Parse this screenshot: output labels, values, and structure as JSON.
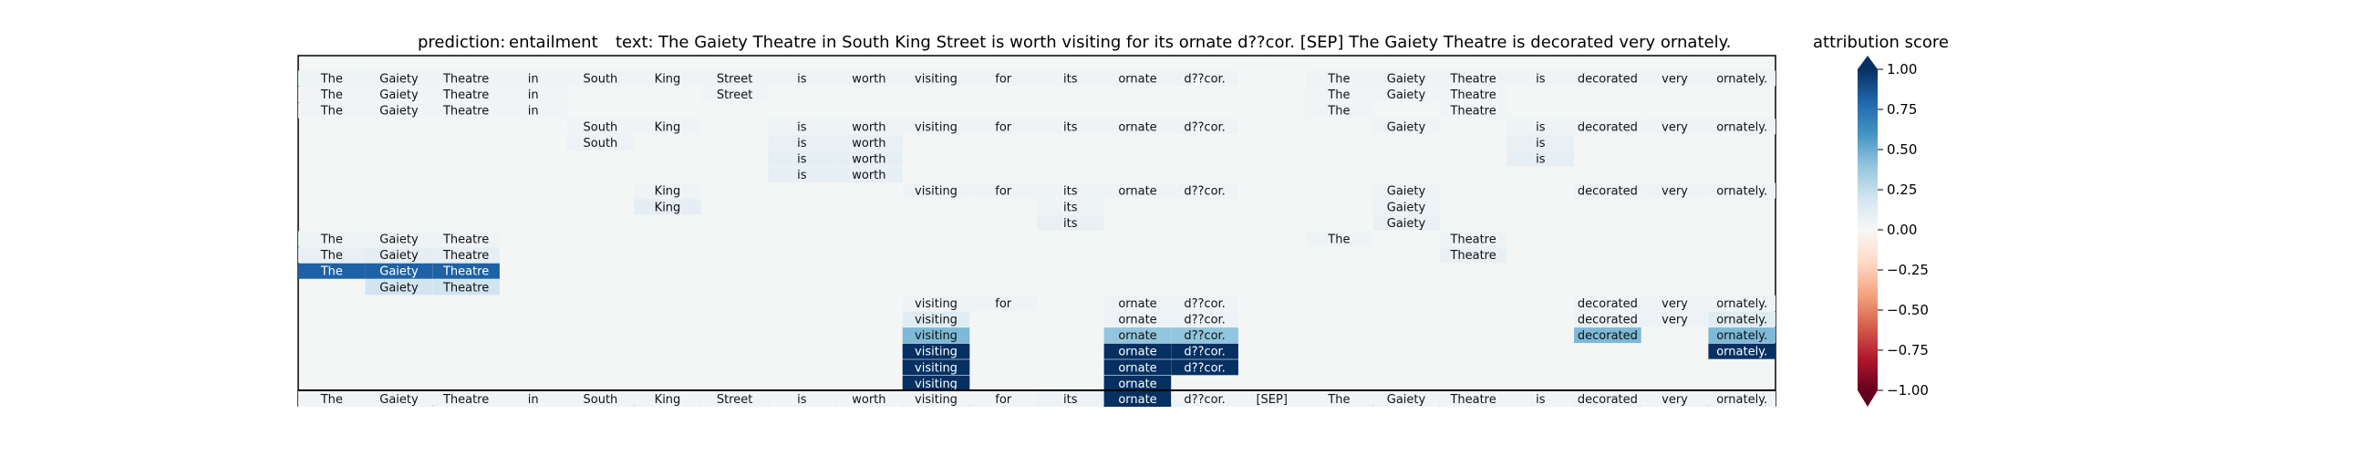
{
  "chart_data": {
    "type": "heatmap",
    "title_prediction_label": "prediction:",
    "title_prediction_value": "entailment",
    "title_text_label": "text:",
    "title_text_value": "The Gaiety Theatre in South King Street is worth visiting for its ornate d??cor. [SEP] The Gaiety Theatre is decorated very ornately.",
    "colorbar_label": "attribution score",
    "colorbar_ticks": [
      "1.00",
      "0.75",
      "0.50",
      "0.25",
      "0.00",
      "−0.25",
      "−0.50",
      "−0.75",
      "−1.00"
    ],
    "colorbar_range": [
      -1,
      1
    ],
    "tokens": [
      "The",
      "Gaiety",
      "Theatre",
      "in",
      "South",
      "King",
      "Street",
      "is",
      "worth",
      "visiting",
      "for",
      "its",
      "ornate",
      "d??cor.",
      "[SEP]",
      "The",
      "Gaiety",
      "Theatre",
      "is",
      "decorated",
      "very",
      "ornately."
    ],
    "rows": [
      {
        "cells": [
          [
            0,
            0.05
          ],
          [
            1,
            0.04
          ],
          [
            2,
            0.04
          ],
          [
            3,
            0.04
          ],
          [
            4,
            0.04
          ],
          [
            5,
            0.04
          ],
          [
            6,
            0.04
          ],
          [
            7,
            0.04
          ],
          [
            8,
            0.04
          ],
          [
            9,
            0.04
          ],
          [
            10,
            0.04
          ],
          [
            11,
            0.04
          ],
          [
            12,
            0.04
          ],
          [
            13,
            0.04
          ],
          [
            15,
            0.04
          ],
          [
            16,
            0.04
          ],
          [
            17,
            0.04
          ],
          [
            18,
            0.04
          ],
          [
            19,
            0.04
          ],
          [
            20,
            0.04
          ],
          [
            21,
            0.04
          ]
        ]
      },
      {
        "cells": [
          [
            0,
            0.03
          ],
          [
            1,
            0.03
          ],
          [
            2,
            0.03
          ],
          [
            3,
            0.03
          ],
          [
            6,
            0.03
          ],
          [
            15,
            0.03
          ],
          [
            16,
            0.03
          ],
          [
            17,
            0.03
          ]
        ]
      },
      {
        "cells": [
          [
            0,
            0.03
          ],
          [
            1,
            0.03
          ],
          [
            2,
            0.03
          ],
          [
            3,
            0.03
          ],
          [
            15,
            0.03
          ],
          [
            17,
            0.03
          ]
        ]
      },
      {
        "cells": [
          [
            4,
            0.04
          ],
          [
            5,
            0.04
          ],
          [
            7,
            0.05
          ],
          [
            8,
            0.05
          ],
          [
            9,
            0.04
          ],
          [
            10,
            0.04
          ],
          [
            11,
            0.04
          ],
          [
            12,
            0.04
          ],
          [
            13,
            0.04
          ],
          [
            16,
            0.04
          ],
          [
            18,
            0.05
          ],
          [
            19,
            0.04
          ],
          [
            20,
            0.04
          ],
          [
            21,
            0.04
          ]
        ]
      },
      {
        "cells": [
          [
            4,
            0.06
          ],
          [
            7,
            0.08
          ],
          [
            8,
            0.08
          ],
          [
            18,
            0.08
          ]
        ]
      },
      {
        "cells": [
          [
            7,
            0.09
          ],
          [
            8,
            0.09
          ],
          [
            18,
            0.09
          ]
        ]
      },
      {
        "cells": [
          [
            7,
            0.09
          ],
          [
            8,
            0.09
          ]
        ]
      },
      {
        "cells": [
          [
            5,
            0.04
          ],
          [
            9,
            0.04
          ],
          [
            10,
            0.04
          ],
          [
            11,
            0.04
          ],
          [
            12,
            0.04
          ],
          [
            13,
            0.04
          ],
          [
            16,
            0.05
          ],
          [
            19,
            0.04
          ],
          [
            20,
            0.04
          ],
          [
            21,
            0.04
          ]
        ]
      },
      {
        "cells": [
          [
            5,
            0.1
          ],
          [
            11,
            0.05
          ],
          [
            16,
            0.06
          ]
        ]
      },
      {
        "cells": [
          [
            11,
            0.08
          ],
          [
            16,
            0.07
          ]
        ]
      },
      {
        "cells": [
          [
            0,
            0.05
          ],
          [
            1,
            0.05
          ],
          [
            2,
            0.05
          ],
          [
            15,
            0.05
          ],
          [
            17,
            0.05
          ]
        ]
      },
      {
        "cells": [
          [
            0,
            0.08
          ],
          [
            1,
            0.1
          ],
          [
            2,
            0.1
          ],
          [
            17,
            0.08
          ]
        ]
      },
      {
        "cells": [
          [
            0,
            0.82
          ],
          [
            1,
            0.82
          ],
          [
            2,
            0.82
          ]
        ]
      },
      {
        "cells": [
          [
            1,
            0.2
          ],
          [
            2,
            0.2
          ]
        ]
      },
      {
        "cells": [
          [
            9,
            0.04
          ],
          [
            10,
            0.04
          ],
          [
            12,
            0.04
          ],
          [
            13,
            0.04
          ],
          [
            19,
            0.05
          ],
          [
            20,
            0.04
          ],
          [
            21,
            0.05
          ]
        ]
      },
      {
        "cells": [
          [
            9,
            0.12
          ],
          [
            12,
            0.06
          ],
          [
            13,
            0.06
          ],
          [
            19,
            0.06
          ],
          [
            20,
            0.06
          ],
          [
            21,
            0.12
          ]
        ]
      },
      {
        "cells": [
          [
            9,
            0.45
          ],
          [
            12,
            0.4
          ],
          [
            13,
            0.4
          ],
          [
            19,
            0.45
          ],
          [
            21,
            0.45
          ]
        ]
      },
      {
        "cells": [
          [
            9,
            1.0
          ],
          [
            12,
            1.0
          ],
          [
            13,
            1.0
          ],
          [
            21,
            1.0
          ]
        ]
      },
      {
        "cells": [
          [
            9,
            1.0
          ],
          [
            12,
            1.0
          ],
          [
            13,
            1.0
          ]
        ]
      },
      {
        "cells": [
          [
            9,
            1.0
          ],
          [
            12,
            1.0
          ]
        ]
      }
    ],
    "input_row": {
      "cells": [
        [
          0,
          0.03
        ],
        [
          1,
          0.03
        ],
        [
          2,
          0.03
        ],
        [
          3,
          0.03
        ],
        [
          4,
          0.03
        ],
        [
          5,
          0.03
        ],
        [
          6,
          0.03
        ],
        [
          7,
          0.03
        ],
        [
          8,
          0.03
        ],
        [
          9,
          0.03
        ],
        [
          10,
          0.03
        ],
        [
          11,
          0.06
        ],
        [
          12,
          1.0
        ],
        [
          13,
          0.03
        ],
        [
          14,
          0.03
        ],
        [
          15,
          0.03
        ],
        [
          16,
          0.03
        ],
        [
          17,
          0.03
        ],
        [
          18,
          0.03
        ],
        [
          19,
          0.03
        ],
        [
          20,
          0.03
        ],
        [
          21,
          0.03
        ]
      ]
    }
  }
}
